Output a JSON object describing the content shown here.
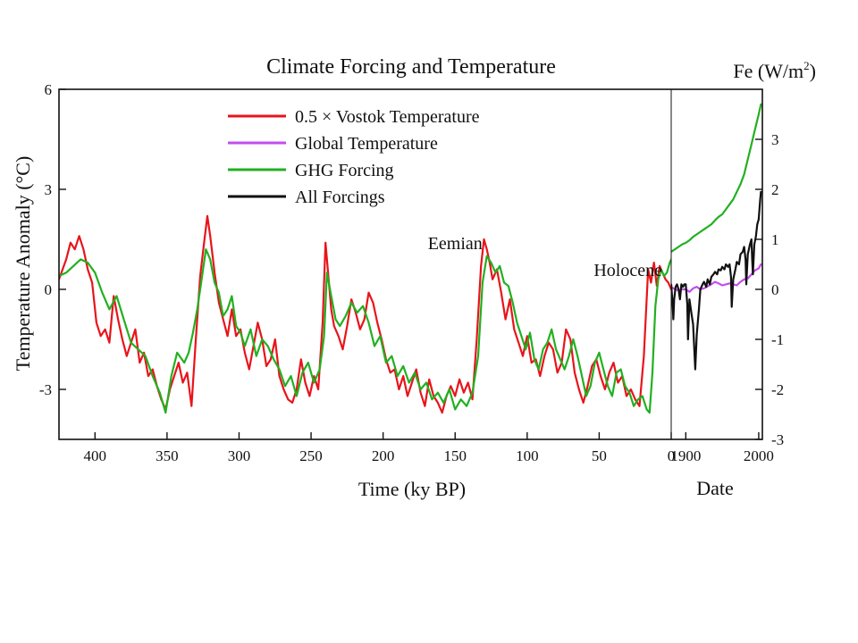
{
  "chart_data": {
    "type": "line",
    "title": "Climate Forcing and Temperature",
    "left_axis_label": "Temperature Anomaly (°C)",
    "right_axis_label": {
      "prefix": "Fe (W/m",
      "sup": "2",
      "suffix": ")"
    },
    "left_xlabel": "Time (ky BP)",
    "right_xlabel": "Date",
    "left_panel": {
      "xlim": [
        425,
        0
      ],
      "x_ticks": [
        400,
        350,
        300,
        250,
        200,
        150,
        100,
        50,
        0
      ],
      "x_tick_labels": [
        "400",
        "350",
        "300",
        "250",
        "200",
        "150",
        "100",
        "50",
        "0"
      ]
    },
    "right_panel": {
      "xlim": [
        1880,
        2005
      ],
      "x_ticks": [
        1900,
        2000
      ],
      "x_tick_labels": [
        "1900",
        "2000"
      ]
    },
    "left_ylim": [
      -4.5,
      6
    ],
    "left_y_ticks": [
      6,
      3,
      0,
      -3
    ],
    "left_y_tick_labels": [
      "6",
      "3",
      "0",
      "-3"
    ],
    "right_ylim": [
      -3,
      4.0
    ],
    "right_y_ticks": [
      3,
      2,
      1,
      0,
      -1,
      -2,
      -3
    ],
    "right_y_tick_labels": [
      "3",
      "2",
      "1",
      "0",
      "-1",
      "-2",
      "-3"
    ],
    "legend": {
      "position": "upper-left",
      "entries": [
        {
          "label": "0.5 × Vostok Temperature",
          "color": "#e8141b"
        },
        {
          "label": "Global Temperature",
          "color": "#c34cf0"
        },
        {
          "label": "GHG Forcing",
          "color": "#22b020"
        },
        {
          "label": "All Forcings",
          "color": "#111111"
        }
      ]
    },
    "annotations": [
      {
        "text": "Eemian",
        "x": 150,
        "y": 1.2
      },
      {
        "text": "Holocene",
        "x": 30,
        "y": 0.4
      }
    ],
    "series": [
      {
        "name": "0.5 × Vostok Temperature",
        "panel": "left",
        "color": "#e8141b",
        "x": [
          425,
          420,
          417,
          414,
          411,
          408,
          405,
          402,
          399,
          396,
          393,
          390,
          387,
          384,
          381,
          378,
          375,
          372,
          369,
          366,
          363,
          360,
          357,
          354,
          351,
          348,
          345,
          342,
          339,
          336,
          333,
          330,
          327,
          324,
          322,
          320,
          317,
          314,
          311,
          308,
          305,
          302,
          299,
          296,
          293,
          290,
          287,
          284,
          281,
          278,
          275,
          272,
          269,
          266,
          263,
          260,
          257,
          254,
          251,
          248,
          245,
          242,
          240,
          238,
          236,
          234,
          231,
          228,
          225,
          222,
          219,
          216,
          213,
          210,
          207,
          204,
          201,
          198,
          195,
          192,
          189,
          186,
          183,
          180,
          177,
          174,
          171,
          168,
          165,
          162,
          159,
          156,
          153,
          150,
          147,
          144,
          141,
          138,
          135,
          132,
          130,
          128,
          126,
          124,
          121,
          118,
          115,
          112,
          109,
          106,
          103,
          100,
          97,
          94,
          91,
          88,
          85,
          82,
          79,
          76,
          73,
          70,
          67,
          64,
          61,
          58,
          55,
          52,
          49,
          46,
          43,
          40,
          37,
          34,
          31,
          28,
          25,
          22,
          19,
          16,
          14,
          12,
          10,
          8,
          6,
          4,
          2,
          0
        ],
        "y": [
          0.3,
          0.9,
          1.4,
          1.2,
          1.6,
          1.2,
          0.6,
          0.2,
          -1.0,
          -1.4,
          -1.2,
          -1.6,
          -0.2,
          -0.9,
          -1.5,
          -2.0,
          -1.6,
          -1.2,
          -2.2,
          -1.9,
          -2.6,
          -2.4,
          -2.9,
          -3.3,
          -3.6,
          -3.0,
          -2.6,
          -2.2,
          -2.8,
          -2.5,
          -3.5,
          -1.5,
          0.4,
          1.5,
          2.2,
          1.6,
          0.5,
          -0.4,
          -0.9,
          -1.4,
          -0.6,
          -1.4,
          -1.2,
          -1.9,
          -2.4,
          -1.7,
          -1.0,
          -1.5,
          -2.3,
          -2.1,
          -1.5,
          -2.6,
          -3.0,
          -3.3,
          -3.4,
          -3.0,
          -2.1,
          -2.8,
          -3.2,
          -2.6,
          -3.0,
          -1.0,
          1.4,
          0.4,
          -0.6,
          -1.1,
          -1.4,
          -1.8,
          -1.1,
          -0.3,
          -0.7,
          -1.2,
          -0.9,
          -0.1,
          -0.4,
          -1.0,
          -1.5,
          -2.1,
          -2.5,
          -2.4,
          -3.0,
          -2.6,
          -3.2,
          -2.8,
          -2.4,
          -3.1,
          -3.5,
          -2.7,
          -3.2,
          -3.4,
          -3.7,
          -3.2,
          -2.9,
          -3.2,
          -2.7,
          -3.1,
          -2.8,
          -3.3,
          -1.5,
          0.7,
          1.5,
          1.2,
          0.8,
          0.3,
          0.6,
          -0.1,
          -0.9,
          -0.3,
          -1.2,
          -1.6,
          -2.0,
          -1.4,
          -2.2,
          -2.1,
          -2.6,
          -2.0,
          -1.6,
          -1.8,
          -2.5,
          -2.2,
          -1.2,
          -1.5,
          -2.5,
          -3.0,
          -3.4,
          -2.9,
          -2.3,
          -2.1,
          -2.6,
          -3.0,
          -2.5,
          -2.2,
          -2.8,
          -2.6,
          -3.2,
          -3.0,
          -3.3,
          -3.5,
          -2.0,
          0.6,
          0.2,
          0.8,
          0.1,
          0.7,
          0.5,
          0.3,
          0.2,
          0.0
        ]
      },
      {
        "name": "GHG Forcing",
        "panel": "left",
        "color": "#22b020",
        "x": [
          425,
          420,
          415,
          410,
          405,
          400,
          395,
          390,
          385,
          380,
          375,
          370,
          365,
          360,
          355,
          351,
          347,
          343,
          338,
          335,
          332,
          329,
          326,
          323,
          320,
          317,
          314,
          311,
          308,
          305,
          302,
          299,
          296,
          292,
          288,
          284,
          280,
          276,
          272,
          268,
          264,
          260,
          256,
          252,
          248,
          244,
          241,
          239,
          236,
          233,
          230,
          226,
          222,
          218,
          214,
          210,
          206,
          202,
          198,
          194,
          190,
          186,
          182,
          178,
          174,
          170,
          166,
          162,
          158,
          154,
          150,
          146,
          142,
          138,
          134,
          131,
          128,
          125,
          122,
          119,
          116,
          113,
          110,
          107,
          104,
          101,
          98,
          95,
          92,
          89,
          86,
          83,
          80,
          77,
          74,
          71,
          68,
          65,
          62,
          59,
          56,
          53,
          50,
          47,
          44,
          41,
          38,
          35,
          32,
          29,
          26,
          23,
          20,
          17,
          15,
          13,
          11,
          9,
          7,
          5,
          3,
          1,
          0
        ],
        "y": [
          0.4,
          0.5,
          0.7,
          0.9,
          0.8,
          0.5,
          -0.1,
          -0.6,
          -0.2,
          -0.9,
          -1.6,
          -1.8,
          -2.0,
          -2.6,
          -3.1,
          -3.7,
          -2.6,
          -1.9,
          -2.2,
          -1.9,
          -1.3,
          -0.6,
          0.3,
          1.2,
          0.9,
          0.2,
          -0.1,
          -0.8,
          -0.6,
          -0.2,
          -1.1,
          -1.3,
          -1.7,
          -1.2,
          -2.0,
          -1.5,
          -1.7,
          -2.1,
          -2.4,
          -2.9,
          -2.6,
          -3.2,
          -2.5,
          -2.2,
          -2.8,
          -2.4,
          -1.4,
          0.5,
          -0.2,
          -0.9,
          -1.1,
          -0.8,
          -0.4,
          -0.7,
          -0.5,
          -1.0,
          -1.7,
          -1.4,
          -2.2,
          -2.0,
          -2.6,
          -2.3,
          -2.8,
          -2.5,
          -3.0,
          -2.8,
          -3.3,
          -3.1,
          -3.4,
          -3.0,
          -3.6,
          -3.3,
          -3.5,
          -3.1,
          -2.0,
          0.2,
          1.0,
          0.8,
          0.5,
          0.7,
          0.2,
          0.1,
          -0.4,
          -1.0,
          -1.4,
          -1.8,
          -1.3,
          -2.1,
          -2.4,
          -1.8,
          -1.6,
          -1.2,
          -1.8,
          -2.1,
          -2.4,
          -2.0,
          -1.5,
          -2.0,
          -2.6,
          -3.2,
          -2.9,
          -2.2,
          -1.9,
          -2.4,
          -2.9,
          -3.2,
          -2.5,
          -2.4,
          -2.9,
          -3.1,
          -3.5,
          -3.3,
          -3.2,
          -3.6,
          -3.7,
          -2.5,
          -0.5,
          0.3,
          0.6,
          0.4,
          0.5,
          0.8,
          0.9
        ]
      },
      {
        "name": "GHG Forcing",
        "panel": "right",
        "color": "#22b020",
        "x": [
          1880,
          1885,
          1890,
          1895,
          1900,
          1905,
          1910,
          1915,
          1920,
          1925,
          1930,
          1935,
          1940,
          1945,
          1950,
          1955,
          1960,
          1965,
          1970,
          1975,
          1980,
          1985,
          1990,
          1995,
          2000,
          2003
        ],
        "y": [
          0.75,
          0.8,
          0.85,
          0.9,
          0.93,
          0.98,
          1.05,
          1.1,
          1.15,
          1.2,
          1.25,
          1.3,
          1.38,
          1.45,
          1.5,
          1.6,
          1.7,
          1.8,
          1.95,
          2.1,
          2.3,
          2.6,
          2.9,
          3.2,
          3.5,
          3.7
        ]
      },
      {
        "name": "Global Temperature",
        "panel": "right",
        "color": "#c34cf0",
        "x": [
          1880,
          1885,
          1890,
          1895,
          1900,
          1905,
          1910,
          1915,
          1920,
          1925,
          1930,
          1935,
          1940,
          1945,
          1950,
          1955,
          1960,
          1965,
          1970,
          1975,
          1980,
          1985,
          1990,
          1995,
          2000,
          2003
        ],
        "y": [
          0.05,
          0.0,
          -0.02,
          0.0,
          0.0,
          -0.05,
          0.02,
          0.05,
          0.0,
          0.02,
          0.06,
          0.1,
          0.15,
          0.12,
          0.08,
          0.1,
          0.12,
          0.1,
          0.08,
          0.15,
          0.2,
          0.22,
          0.3,
          0.38,
          0.42,
          0.5
        ]
      },
      {
        "name": "All Forcings",
        "panel": "right",
        "color": "#111111",
        "x": [
          1880,
          1882,
          1883,
          1884,
          1886,
          1888,
          1890,
          1892,
          1894,
          1896,
          1898,
          1900,
          1902,
          1903,
          1905,
          1908,
          1910,
          1912,
          1913,
          1915,
          1918,
          1920,
          1923,
          1925,
          1928,
          1930,
          1933,
          1935,
          1938,
          1940,
          1943,
          1945,
          1948,
          1950,
          1953,
          1955,
          1958,
          1960,
          1962,
          1963,
          1965,
          1968,
          1970,
          1973,
          1975,
          1978,
          1980,
          1982,
          1983,
          1985,
          1988,
          1990,
          1991,
          1992,
          1994,
          1996,
          1998,
          2000,
          2002,
          2003
        ],
        "y": [
          0.1,
          -0.3,
          -0.6,
          -0.2,
          0.05,
          0.1,
          0.0,
          -0.2,
          0.1,
          0.05,
          0.1,
          0.1,
          -0.3,
          -1.0,
          -0.2,
          -0.5,
          -0.7,
          -1.3,
          -1.6,
          -0.9,
          -0.4,
          0.0,
          0.1,
          0.15,
          0.05,
          0.2,
          0.1,
          0.25,
          0.3,
          0.35,
          0.3,
          0.4,
          0.38,
          0.45,
          0.4,
          0.5,
          0.45,
          0.5,
          0.25,
          -0.35,
          0.2,
          0.4,
          0.55,
          0.5,
          0.7,
          0.75,
          0.85,
          0.6,
          0.1,
          0.7,
          0.9,
          1.0,
          0.6,
          0.3,
          0.9,
          1.05,
          1.3,
          1.4,
          1.8,
          1.95
        ]
      }
    ]
  }
}
